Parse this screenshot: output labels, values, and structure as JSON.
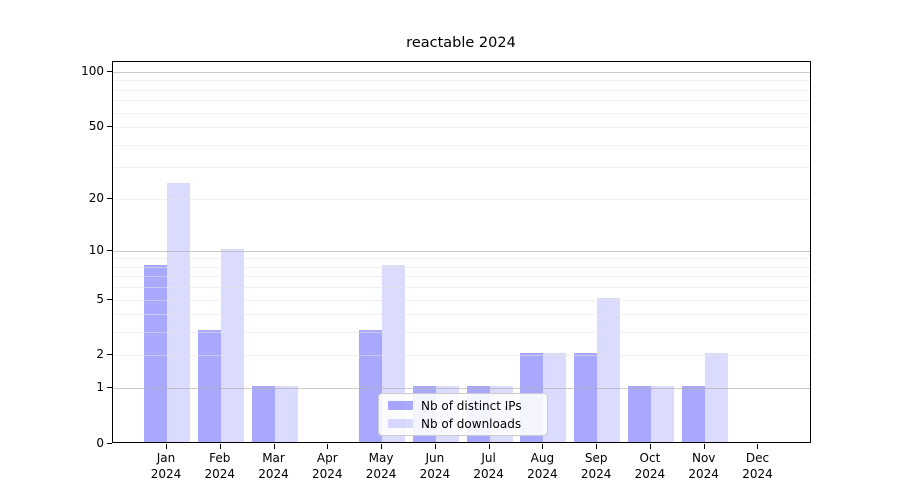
{
  "title": "reactable 2024",
  "chart_data": {
    "type": "bar",
    "title": "reactable 2024",
    "y_scale": "log1p",
    "grid": true,
    "legend_position": "lower center",
    "categories": [
      "Jan 2024",
      "Feb 2024",
      "Mar 2024",
      "Apr 2024",
      "May 2024",
      "Jun 2024",
      "Jul 2024",
      "Aug 2024",
      "Sep 2024",
      "Oct 2024",
      "Nov 2024",
      "Dec 2024"
    ],
    "series": [
      {
        "name": "Nb of distinct IPs",
        "color": "rgba(0,0,255,0.34)",
        "values": [
          8,
          3,
          1,
          0,
          3,
          1,
          1,
          2,
          2,
          1,
          1,
          0
        ]
      },
      {
        "name": "Nb of downloads",
        "color": "rgba(0,0,255,0.14)",
        "values": [
          24,
          10,
          1,
          0,
          8,
          1,
          1,
          2,
          5,
          1,
          2,
          0
        ]
      }
    ],
    "y_tick_labels": [
      0,
      1,
      2,
      5,
      10,
      20,
      50,
      100
    ],
    "y_major_gridlines": [
      1,
      10,
      100
    ],
    "y_minor_gridlines": [
      2,
      3,
      4,
      5,
      6,
      7,
      8,
      9,
      20,
      30,
      40,
      50,
      60,
      70,
      80,
      90
    ],
    "ylim": [
      0,
      113
    ],
    "colors": {
      "major_grid": "#b0b0b0",
      "minor_grid": "#e4e4e4",
      "axis": "#000000",
      "background": "#ffffff",
      "text": "#000000"
    }
  }
}
